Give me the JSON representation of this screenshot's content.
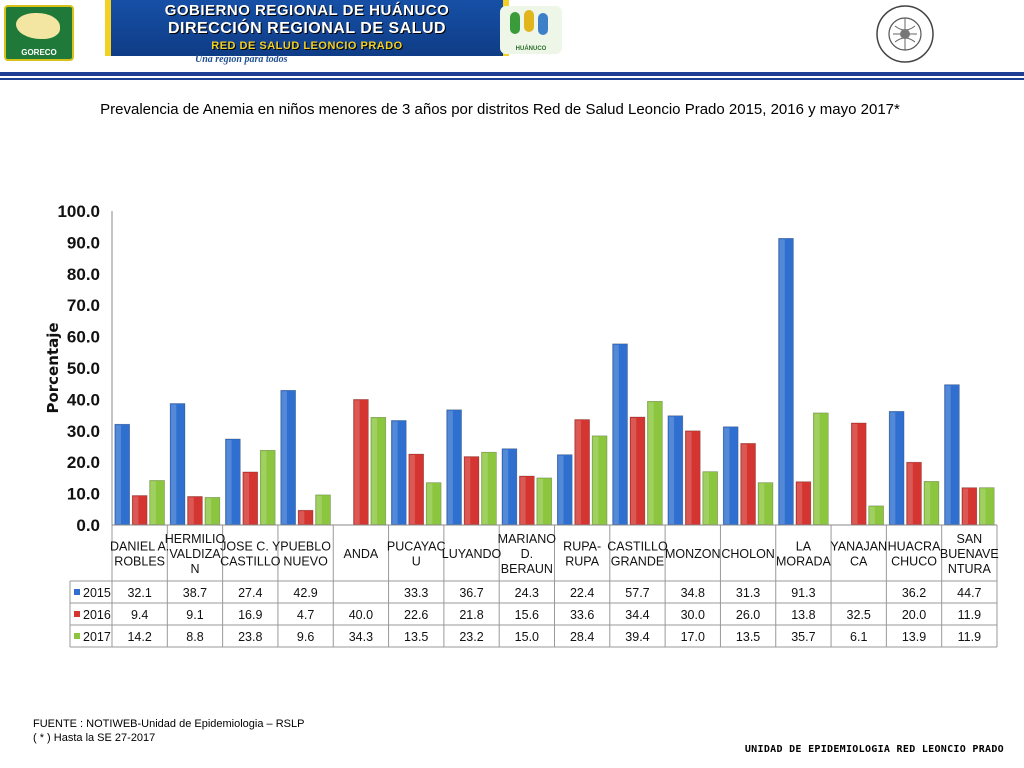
{
  "header": {
    "gov_logo_label": "GORECO",
    "line1": "GOBIERNO REGIONAL DE HUÁNUCO",
    "line2": "DIRECCIÓN REGIONAL DE SALUD",
    "line3": "RED DE SALUD LEONCIO PRADO",
    "slogan": "Una región para todos",
    "kids_logo_label": "HUÁNUCO",
    "seal_label": "RED NACIONAL DE EPIDEMIOLOGIA · RENACE"
  },
  "chart_title": "Prevalencia de Anemia en niños menores de 3 años por  distritos  Red de Salud Leoncio Prado  2015, 2016 y mayo  2017*",
  "chart_data": {
    "type": "bar",
    "title": "Prevalencia de Anemia en niños menores de 3 años por  distritos  Red de Salud Leoncio Prado  2015, 2016 y mayo  2017*",
    "ylabel": "Porcentaje",
    "xlabel": "",
    "ylim": [
      0,
      100
    ],
    "yticks": [
      "0.0",
      "10.0",
      "20.0",
      "30.0",
      "40.0",
      "50.0",
      "60.0",
      "70.0",
      "80.0",
      "90.0",
      "100.0"
    ],
    "grid": false,
    "legend": "data-table",
    "categories": [
      [
        "DANIEL A.",
        "ROBLES"
      ],
      [
        "HERMILIO",
        "VALDIZA",
        "N"
      ],
      [
        "JOSE C. Y",
        "CASTILLO"
      ],
      [
        "PUEBLO",
        "NUEVO"
      ],
      [
        "ANDA"
      ],
      [
        "PUCAYAC",
        "U"
      ],
      [
        "LUYANDO"
      ],
      [
        "MARIANO",
        "D.",
        "BERAUN"
      ],
      [
        "RUPA-",
        "RUPA"
      ],
      [
        "CASTILLO",
        "GRANDE"
      ],
      [
        "MONZON"
      ],
      [
        "CHOLON"
      ],
      [
        "LA",
        "MORADA"
      ],
      [
        "YANAJAN",
        "CA"
      ],
      [
        "HUACRA",
        "CHUCO"
      ],
      [
        "SAN",
        "BUENAVE",
        "NTURA"
      ]
    ],
    "series": [
      {
        "name": "2015",
        "color": "#2f6fd0",
        "values": [
          32.1,
          38.7,
          27.4,
          42.9,
          null,
          33.3,
          36.7,
          24.3,
          22.4,
          57.7,
          34.8,
          31.3,
          91.3,
          null,
          36.2,
          44.7
        ],
        "labels": [
          "32.1",
          "38.7",
          "27.4",
          "42.9",
          "",
          "33.3",
          "36.7",
          "24.3",
          "22.4",
          "57.7",
          "34.8",
          "31.3",
          "91.3",
          "",
          "36.2",
          "44.7"
        ]
      },
      {
        "name": "2016",
        "color": "#d43530",
        "values": [
          9.4,
          9.1,
          16.9,
          4.7,
          40.0,
          22.6,
          21.8,
          15.6,
          33.6,
          34.4,
          30.0,
          26.0,
          13.8,
          32.5,
          20.0,
          11.9
        ],
        "labels": [
          "9.4",
          "9.1",
          "16.9",
          "4.7",
          "40.0",
          "22.6",
          "21.8",
          "15.6",
          "33.6",
          "34.4",
          "30.0",
          "26.0",
          "13.8",
          "32.5",
          "20.0",
          "11.9"
        ]
      },
      {
        "name": "2017",
        "color": "#8cc63f",
        "values": [
          14.2,
          8.8,
          23.8,
          9.6,
          34.3,
          13.5,
          23.2,
          15.0,
          28.4,
          39.4,
          17.0,
          13.5,
          35.7,
          6.1,
          13.9,
          11.9
        ],
        "labels": [
          "14.2",
          "8.8",
          "23.8",
          "9.6",
          "34.3",
          "13.5",
          "23.2",
          "15.0",
          "28.4",
          "39.4",
          "17.0",
          "13.5",
          "35.7",
          "6.1",
          "13.9",
          "11.9"
        ]
      }
    ]
  },
  "footer": {
    "source": "FUENTE : NOTIWEB-Unidad de Epidemiologia – RSLP",
    "note": "( * ) Hasta la SE  27-2017",
    "unit": "UNIDAD  DE EPIDEMIOLOGIA RED LEONCIO PRADO"
  }
}
